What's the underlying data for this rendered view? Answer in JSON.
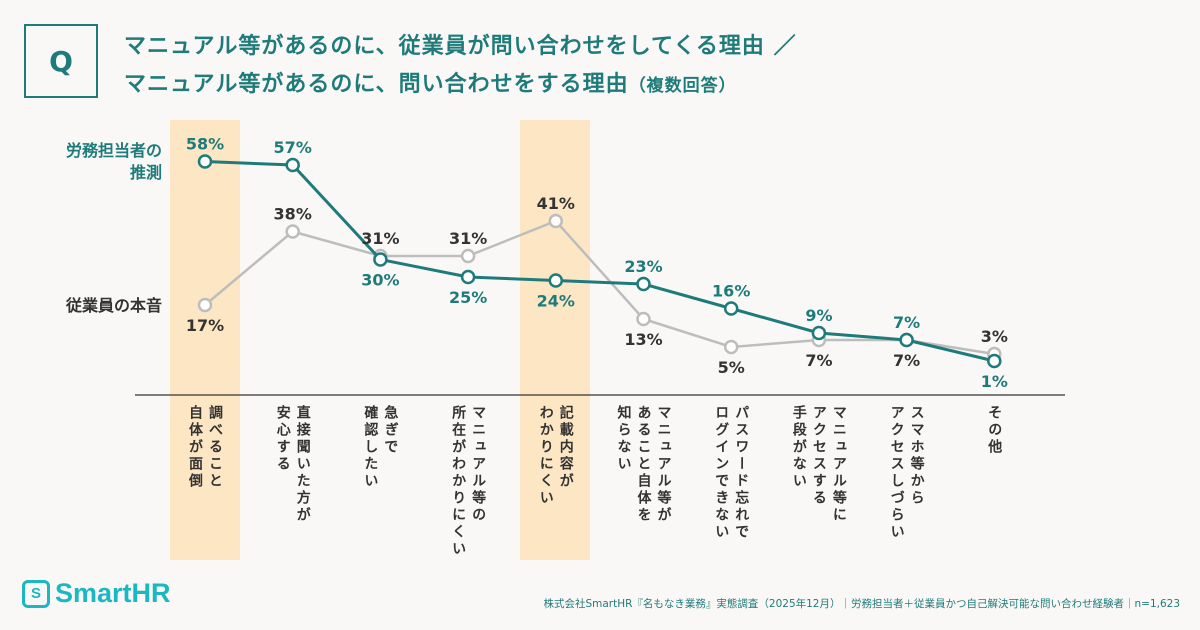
{
  "title": {
    "badge": "Q",
    "line1": "マニュアル等があるのに、従業員が問い合わせをしてくる理由 ／",
    "line2": "マニュアル等があるのに、問い合わせをする理由",
    "note": "（複数回答）"
  },
  "colors": {
    "teal": "#1f7b7a",
    "gray": "#bdbdbd",
    "highlight": "#fde6c3",
    "brand": "#19b8c2"
  },
  "chart_data": {
    "type": "line",
    "categories": [
      "調べること\n自体が面倒",
      "直接聞いた方が\n安心する",
      "急ぎで\n確認したい",
      "マニュアル等の\n所在がわかりにくい",
      "記載内容が\nわかりにくい",
      "マニュアル等が\nあること自体を\n知らない",
      "パスワード忘れで\nログインできない",
      "マニュアル等に\nアクセスする\n手段がない",
      "スマホ等から\nアクセスしづらい",
      "その他"
    ],
    "series": [
      {
        "name": "労務担当者の推測",
        "values": [
          58,
          57,
          30,
          25,
          24,
          23,
          16,
          9,
          7,
          1
        ],
        "color": "#1f7b7a"
      },
      {
        "name": "従業員の本音",
        "values": [
          17,
          38,
          31,
          31,
          41,
          13,
          5,
          7,
          7,
          3
        ],
        "color": "#bdbdbd"
      }
    ],
    "highlighted_categories": [
      0,
      4
    ],
    "value_suffix": "%",
    "ylim": [
      0,
      60
    ],
    "grid": false
  },
  "footer": {
    "logo": "SmartHR",
    "logo_mark": "S",
    "source": "株式会社SmartHR『名もなき業務』実態調査（2025年12月）｜労務担当者＋従業員かつ自己解決可能な問い合わせ経験者｜n=1,623"
  }
}
